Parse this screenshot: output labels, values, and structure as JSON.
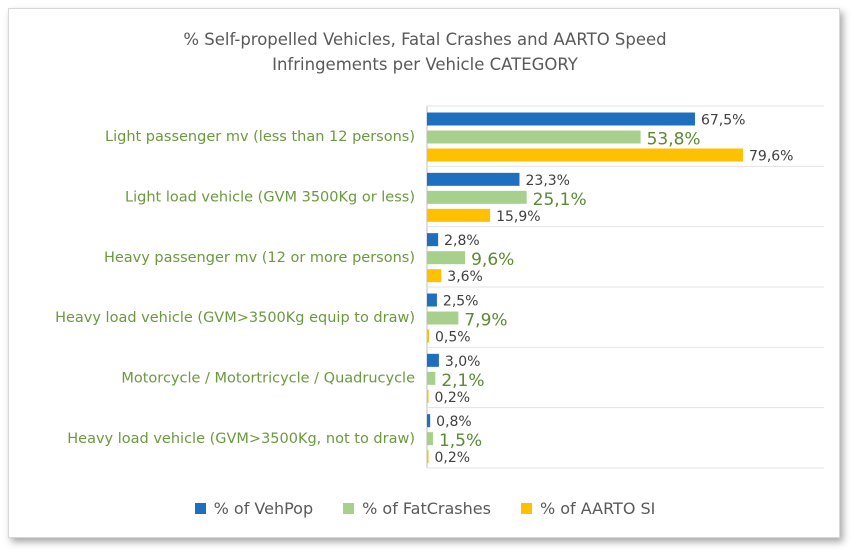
{
  "chart_data": {
    "type": "bar",
    "orientation": "horizontal",
    "title_lines": [
      "% Self-propelled Vehicles, Fatal Crashes and AARTO Speed",
      "Infringements per Vehicle CATEGORY"
    ],
    "categories": [
      "Light passenger mv (less than 12 persons)",
      "Light load vehicle (GVM 3500Kg or less)",
      "Heavy passenger mv (12 or more persons)",
      "Heavy load vehicle (GVM>3500Kg equip to draw)",
      "Motorcycle / Motortricycle / Quadrucycle",
      "Heavy load vehicle (GVM>3500Kg, not to draw)"
    ],
    "series": [
      {
        "name": "% of VehPop",
        "color": "#1f6fbf",
        "values": [
          67.5,
          23.3,
          2.8,
          2.5,
          3.0,
          0.8
        ],
        "labels": [
          "67,5%",
          "23,3%",
          "2,8%",
          "2,5%",
          "3,0%",
          "0,8%"
        ]
      },
      {
        "name": "% of FatCrashes",
        "color": "#a8d08d",
        "values": [
          53.8,
          25.1,
          9.6,
          7.9,
          2.1,
          1.5
        ],
        "labels": [
          "53,8%",
          "25,1%",
          "9,6%",
          "7,9%",
          "2,1%",
          "1,5%"
        ]
      },
      {
        "name": "% of AARTO SI",
        "color": "#ffc000",
        "values": [
          79.6,
          15.9,
          3.6,
          0.5,
          0.2,
          0.2
        ],
        "labels": [
          "79,6%",
          "15,9%",
          "3,6%",
          "0,5%",
          "0,2%",
          "0,2%"
        ]
      }
    ],
    "xlim": [
      0,
      100
    ],
    "grid": false,
    "legend_position": "bottom",
    "category_label_color": "#6b9a3e",
    "crash_label_color": "#5a8a32"
  }
}
